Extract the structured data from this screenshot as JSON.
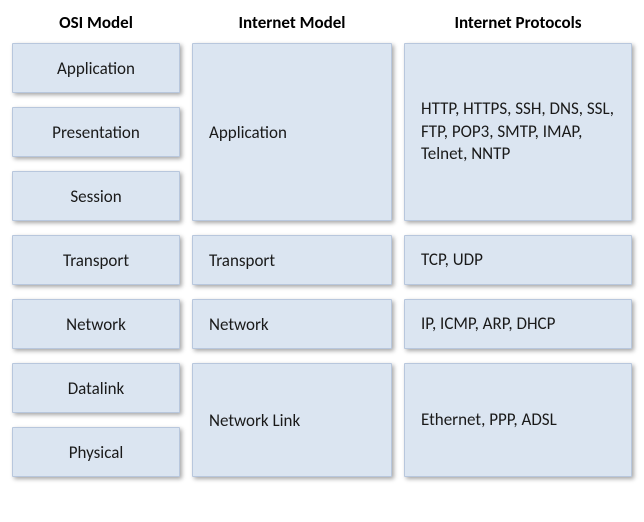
{
  "type": "layer-comparison-table",
  "background_color": "#ffffff",
  "box_fill": "#dbe5f1",
  "box_border": "#b8c7dd",
  "shadow": "2px 2px 4px rgba(0,0,0,0.35)",
  "heading_fontsize": 17,
  "body_fontsize": 17,
  "columns": {
    "osi": {
      "title": "OSI Model",
      "layers": [
        "Application",
        "Presentation",
        "Session",
        "Transport",
        "Network",
        "Datalink",
        "Physical"
      ]
    },
    "internet": {
      "title": "Internet Model",
      "layers": [
        {
          "label": "Application",
          "span": 3
        },
        {
          "label": "Transport",
          "span": 1
        },
        {
          "label": "Network",
          "span": 1
        },
        {
          "label": "Network Link",
          "span": 2
        }
      ]
    },
    "protocols": {
      "title": "Internet Protocols",
      "layers": [
        {
          "label": "HTTP, HTTPS, SSH, DNS, SSL, FTP, POP3, SMTP, IMAP, Telnet, NNTP",
          "span": 3
        },
        {
          "label": "TCP, UDP",
          "span": 1
        },
        {
          "label": "IP, ICMP, ARP, DHCP",
          "span": 1
        },
        {
          "label": "Ethernet, PPP, ADSL",
          "span": 2
        }
      ]
    }
  }
}
